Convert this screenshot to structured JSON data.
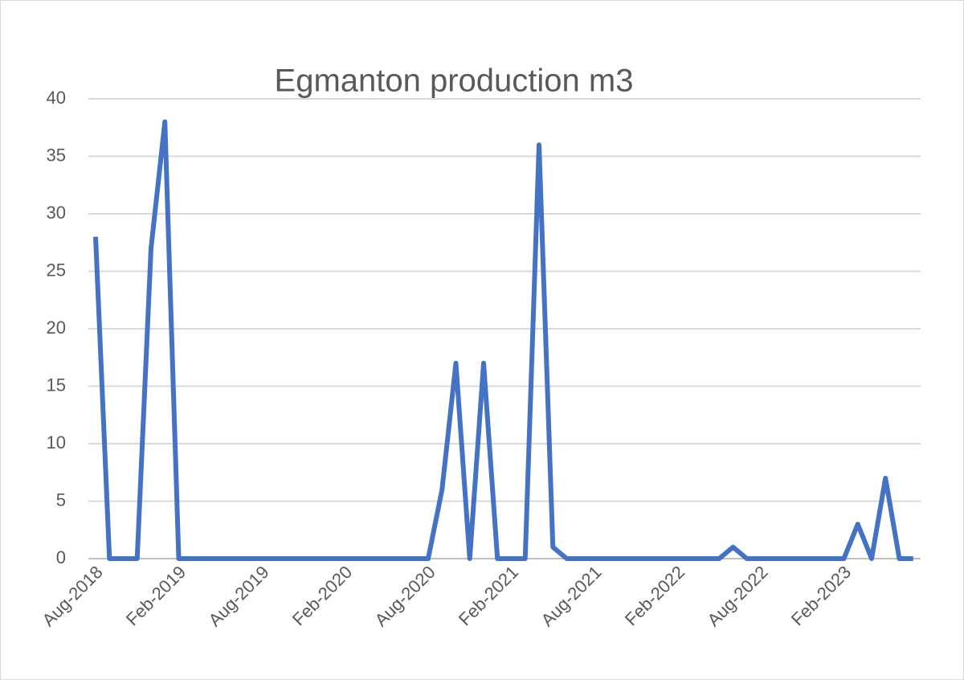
{
  "chart_data": {
    "type": "line",
    "title": "Egmanton production m3",
    "categories": [
      "Aug-2018",
      null,
      null,
      null,
      null,
      null,
      "Feb-2019",
      null,
      null,
      null,
      null,
      null,
      "Aug-2019",
      null,
      null,
      null,
      null,
      null,
      "Feb-2020",
      null,
      null,
      null,
      null,
      null,
      "Aug-2020",
      null,
      null,
      null,
      null,
      null,
      "Feb-2021",
      null,
      null,
      null,
      null,
      null,
      "Aug-2021",
      null,
      null,
      null,
      null,
      null,
      "Feb-2022",
      null,
      null,
      null,
      null,
      null,
      "Aug-2022",
      null,
      null,
      null,
      null,
      null,
      "Feb-2023",
      null,
      null,
      null,
      null,
      null
    ],
    "values": [
      28,
      0,
      0,
      0,
      27,
      38,
      0,
      0,
      0,
      0,
      0,
      0,
      0,
      0,
      0,
      0,
      0,
      0,
      0,
      0,
      0,
      0,
      0,
      0,
      0,
      6,
      17,
      0,
      17,
      0,
      0,
      0,
      36,
      1,
      0,
      0,
      0,
      0,
      0,
      0,
      0,
      0,
      0,
      0,
      0,
      0,
      1,
      0,
      0,
      0,
      0,
      0,
      0,
      0,
      0,
      3,
      0,
      7,
      0,
      0
    ],
    "color": "#4472c4",
    "ylim": [
      0,
      40
    ],
    "yticks": [
      0,
      5,
      10,
      15,
      20,
      25,
      30,
      35,
      40
    ],
    "grid": true
  }
}
